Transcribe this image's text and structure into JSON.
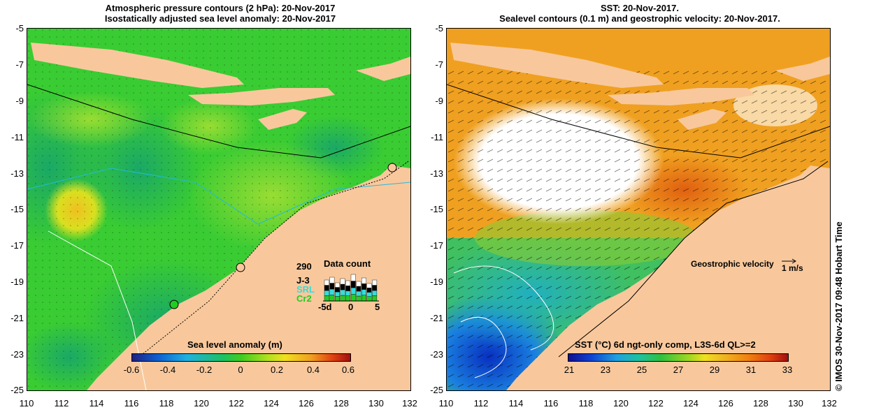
{
  "left_map": {
    "title_line1": "Atmospheric pressure contours (2 hPa): 20-Nov-2017",
    "title_line2": "Isostatically adjusted sea level anomaly: 20-Nov-2017",
    "lat_ticks": [
      "-5",
      "-7",
      "-9",
      "-11",
      "-13",
      "-15",
      "-17",
      "-19",
      "-21",
      "-23",
      "-25"
    ],
    "lon_ticks": [
      "110",
      "112",
      "114",
      "116",
      "118",
      "120",
      "122",
      "124",
      "126",
      "128",
      "130",
      "132"
    ],
    "colorbar": {
      "label": "Sea level anomaly (m)",
      "ticks": [
        "-0.6",
        "-0.4",
        "-0.2",
        "0",
        "0.2",
        "0.4",
        "0.6"
      ]
    },
    "data_count": {
      "title": "Data count",
      "max": "290",
      "missions": [
        "J-3",
        "SRL",
        "Cr2"
      ],
      "mission_colors": [
        "#000000",
        "#33dddd",
        "#22cc22"
      ],
      "axis_ticks": [
        "-5d",
        "0",
        "5"
      ]
    },
    "land_color": "#f8c89c",
    "sea_color": "#22cc33"
  },
  "right_map": {
    "title_line1": "SST: 20-Nov-2017.",
    "title_line2": "Sealevel contours (0.1 m) and geostrophic velocity: 20-Nov-2017.",
    "lat_ticks": [
      "-5",
      "-7",
      "-9",
      "-11",
      "-13",
      "-15",
      "-17",
      "-19",
      "-21",
      "-23",
      "-25"
    ],
    "lon_ticks": [
      "110",
      "112",
      "114",
      "116",
      "118",
      "120",
      "122",
      "124",
      "126",
      "128",
      "130",
      "132"
    ],
    "colorbar": {
      "label": "SST (°C) 6d ngt-only comp, L3S-6d QL>=2",
      "ticks": [
        "21",
        "23",
        "25",
        "27",
        "29",
        "31",
        "33"
      ]
    },
    "geostrophic_label": "Geostrophic velocity",
    "velocity_scale": "1 m/s"
  },
  "side_credit": "© IMOS 30-Nov-2017 09:48 Hobart Time"
}
